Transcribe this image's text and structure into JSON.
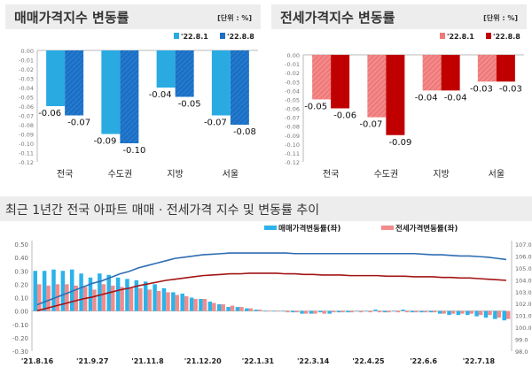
{
  "chart_data": [
    {
      "type": "bar",
      "title": "매매가격지수 변동률",
      "unit": "[단위 : %]",
      "categories": [
        "전국",
        "수도권",
        "지방",
        "서울"
      ],
      "series": [
        {
          "name": "'22.8.1",
          "values": [
            -0.06,
            -0.09,
            -0.04,
            -0.07
          ],
          "color": "#29ABE2"
        },
        {
          "name": "'22.8.8",
          "values": [
            -0.07,
            -0.1,
            -0.05,
            -0.08
          ],
          "color": "#1B6FC4"
        }
      ],
      "ylim": [
        -0.12,
        0.0
      ],
      "yticks": [
        "0.00",
        "-0.01",
        "-0.02",
        "-0.03",
        "-0.04",
        "-0.05",
        "-0.06",
        "-0.07",
        "-0.08",
        "-0.09",
        "-0.10",
        "-0.11",
        "-0.12"
      ],
      "legend": "top-right"
    },
    {
      "type": "bar",
      "title": "전세가격지수 변동률",
      "unit": "[단위 : %]",
      "categories": [
        "전국",
        "수도권",
        "지방",
        "서울"
      ],
      "series": [
        {
          "name": "'22.8.1",
          "values": [
            -0.05,
            -0.07,
            -0.04,
            -0.03
          ],
          "color": "#F07A7A"
        },
        {
          "name": "'22.8.8",
          "values": [
            -0.06,
            -0.09,
            -0.04,
            -0.03
          ],
          "color": "#C00000"
        }
      ],
      "ylim": [
        -0.12,
        0.0
      ],
      "yticks": [
        "0.00",
        "-0.01",
        "-0.02",
        "-0.03",
        "-0.04",
        "-0.05",
        "-0.06",
        "-0.07",
        "-0.08",
        "-0.09",
        "-0.10",
        "-0.11",
        "-0.12"
      ],
      "legend": "top-right"
    },
    {
      "type": "bar+line",
      "title": "최근 1년간 전국 아파트 매매 · 전세가격 지수 및 변동률 추이",
      "xticks": [
        "'21.8.16",
        "'21.9.27",
        "'21.11.8",
        "'21.12.20",
        "'22.1.31",
        "'22.3.14",
        "'22.4.25",
        "'22.6.6",
        "'22.7.18"
      ],
      "ylim_left": [
        -0.3,
        0.5
      ],
      "yticks_left": [
        "0.50",
        "0.40",
        "0.30",
        "0.20",
        "0.10",
        "0.00",
        "-0.10",
        "-0.20",
        "-0.30"
      ],
      "ylim_right": [
        98.0,
        107.0
      ],
      "yticks_right": [
        "107.0",
        "106.0",
        "105.0",
        "104.0",
        "103.0",
        "102.0",
        "101.0",
        "100.0",
        "99.0",
        "98.0"
      ],
      "legend": "top-right",
      "series": [
        {
          "name": "매매가격변동률(좌)",
          "kind": "bar",
          "color": "#2BB3EA",
          "values": [
            0.3,
            0.3,
            0.31,
            0.3,
            0.31,
            0.28,
            0.25,
            0.28,
            0.27,
            0.25,
            0.24,
            0.23,
            0.22,
            0.2,
            0.17,
            0.14,
            0.13,
            0.1,
            0.09,
            0.07,
            0.05,
            0.03,
            0.03,
            0.02,
            0.01,
            0.0,
            0.0,
            0.0,
            -0.01,
            -0.02,
            -0.02,
            -0.01,
            -0.02,
            -0.01,
            -0.01,
            0.0,
            0.0,
            0.01,
            -0.01,
            0.0,
            0.01,
            -0.01,
            -0.01,
            -0.01,
            -0.02,
            -0.03,
            -0.03,
            -0.03,
            -0.04,
            -0.05,
            -0.06,
            -0.07
          ]
        },
        {
          "name": "전세가격변동률(좌)",
          "kind": "bar",
          "color": "#F08C8C",
          "values": [
            0.2,
            0.19,
            0.2,
            0.2,
            0.19,
            0.18,
            0.16,
            0.2,
            0.19,
            0.18,
            0.17,
            0.17,
            0.16,
            0.15,
            0.14,
            0.12,
            0.11,
            0.09,
            0.09,
            0.06,
            0.05,
            0.04,
            0.03,
            0.02,
            0.01,
            0.0,
            0.0,
            -0.01,
            -0.01,
            -0.02,
            -0.02,
            -0.02,
            -0.01,
            -0.01,
            -0.01,
            -0.01,
            -0.01,
            -0.01,
            -0.01,
            -0.01,
            -0.01,
            -0.01,
            -0.01,
            -0.01,
            -0.02,
            -0.02,
            -0.02,
            -0.02,
            -0.03,
            -0.03,
            -0.05,
            -0.06
          ]
        },
        {
          "kind": "line",
          "axis": "right",
          "color": "#2E6DB4",
          "values": [
            101.9,
            102.2,
            102.5,
            102.8,
            103.1,
            103.4,
            103.7,
            103.9,
            104.2,
            104.5,
            104.7,
            105.0,
            105.2,
            105.4,
            105.6,
            105.8,
            105.9,
            106.0,
            106.1,
            106.15,
            106.2,
            106.25,
            106.25,
            106.25,
            106.25,
            106.25,
            106.25,
            106.25,
            106.2,
            106.2,
            106.2,
            106.2,
            106.2,
            106.2,
            106.2,
            106.2,
            106.2,
            106.2,
            106.2,
            106.2,
            106.2,
            106.2,
            106.15,
            106.1,
            106.1,
            106.05,
            106.0,
            106.0,
            105.95,
            105.9,
            105.8,
            105.7
          ]
        },
        {
          "kind": "line",
          "axis": "right",
          "color": "#A31515",
          "values": [
            101.4,
            101.6,
            101.8,
            102.0,
            102.2,
            102.4,
            102.55,
            102.75,
            102.95,
            103.15,
            103.3,
            103.5,
            103.65,
            103.8,
            103.95,
            104.05,
            104.15,
            104.25,
            104.35,
            104.4,
            104.45,
            104.5,
            104.5,
            104.55,
            104.55,
            104.55,
            104.55,
            104.5,
            104.5,
            104.45,
            104.45,
            104.4,
            104.4,
            104.4,
            104.35,
            104.35,
            104.35,
            104.35,
            104.3,
            104.3,
            104.3,
            104.25,
            104.25,
            104.25,
            104.2,
            104.2,
            104.15,
            104.15,
            104.1,
            104.05,
            104.0,
            103.95
          ]
        }
      ]
    }
  ]
}
